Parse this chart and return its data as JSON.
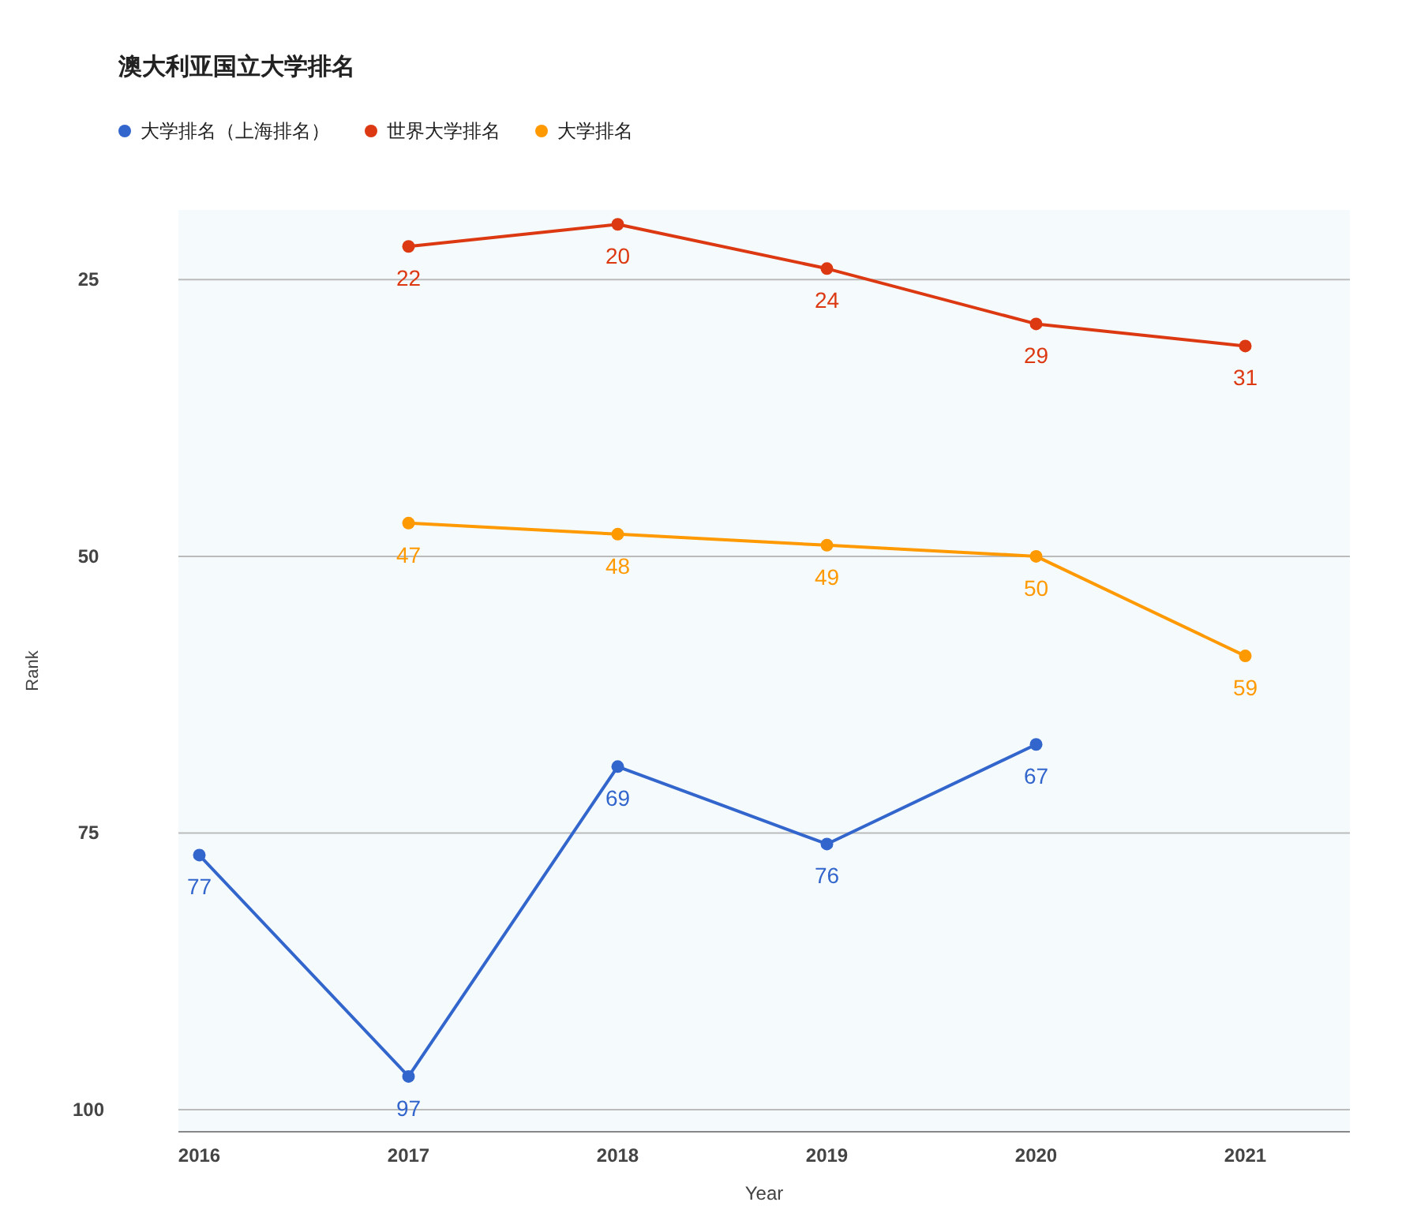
{
  "chart_data": {
    "type": "line",
    "title": "澳大利亚国立大学排名",
    "xlabel": "Year",
    "ylabel": "Rank",
    "x": [
      2016,
      2017,
      2018,
      2019,
      2020,
      2021
    ],
    "xlim": [
      2015.9,
      2021.5
    ],
    "xticks": [
      2016,
      2017,
      2018,
      2019,
      2020,
      2021
    ],
    "ylim": [
      102,
      18.7
    ],
    "yticks": [
      25,
      50,
      75,
      100
    ],
    "grid": "y",
    "legend": "top left",
    "marker": "circle",
    "data_labels": true,
    "series": [
      {
        "name": "大学排名（上海排名）",
        "color": "#3366cc",
        "values": [
          77,
          97,
          69,
          76,
          67,
          null
        ]
      },
      {
        "name": "世界大学排名",
        "color": "#dc3912",
        "values": [
          null,
          22,
          20,
          24,
          29,
          31
        ]
      },
      {
        "name": "大学排名",
        "color": "#ff9900",
        "values": [
          null,
          47,
          48,
          49,
          50,
          59
        ]
      }
    ]
  }
}
